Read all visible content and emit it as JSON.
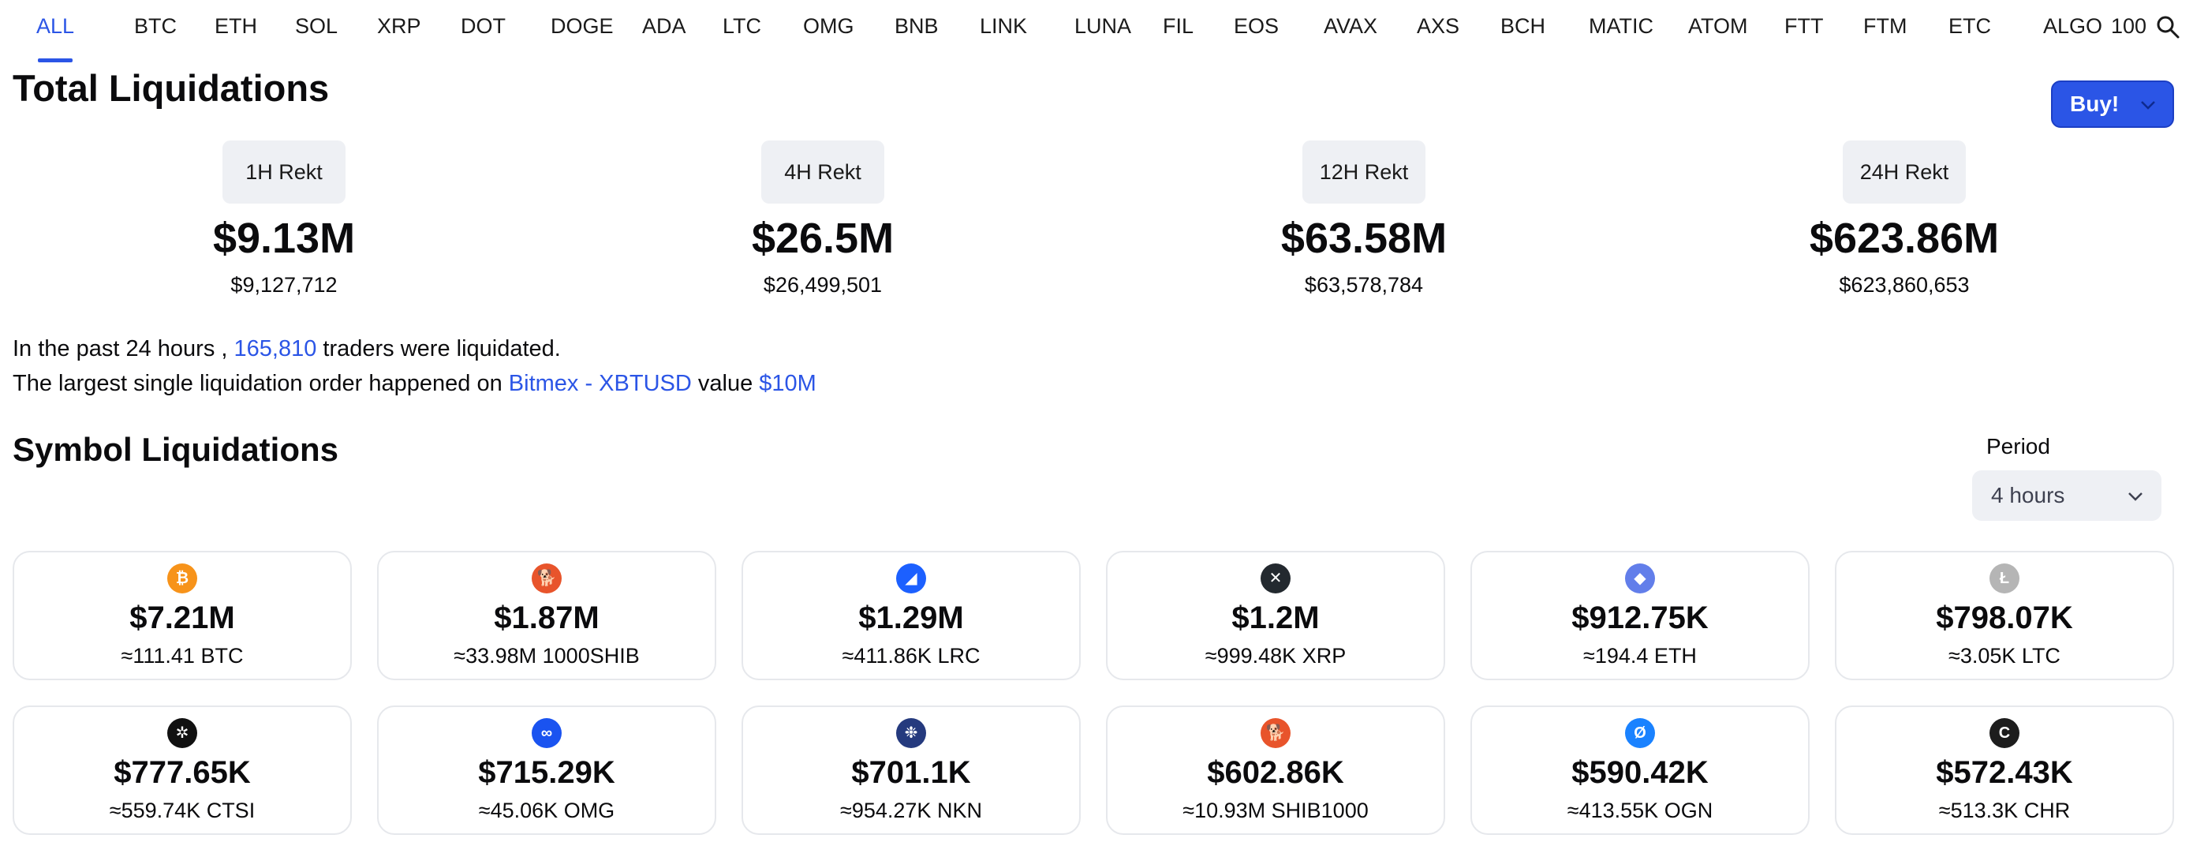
{
  "tabs": [
    "ALL",
    "BTC",
    "ETH",
    "SOL",
    "XRP",
    "DOT",
    "DOGE",
    "ADA",
    "LTC",
    "OMG",
    "BNB",
    "LINK",
    "LUNA",
    "FIL",
    "EOS",
    "AVAX",
    "AXS",
    "BCH",
    "MATIC",
    "ATOM",
    "FTT",
    "FTM",
    "ETC",
    "ALGO",
    "100"
  ],
  "active_tab": "ALL",
  "total": {
    "title": "Total Liquidations",
    "buy_label": "Buy!",
    "rekt": [
      {
        "label": "1H Rekt",
        "big": "$9.13M",
        "small": "$9,127,712"
      },
      {
        "label": "4H Rekt",
        "big": "$26.5M",
        "small": "$26,499,501"
      },
      {
        "label": "12H Rekt",
        "big": "$63.58M",
        "small": "$63,578,784"
      },
      {
        "label": "24H Rekt",
        "big": "$623.86M",
        "small": "$623,860,653"
      }
    ]
  },
  "summary": {
    "line1_prefix": "In the past 24 hours , ",
    "traders": "165,810",
    "line1_suffix": " traders were liquidated.",
    "line2_prefix": "The largest single liquidation order happened on ",
    "exchange": "Bitmex - XBTUSD",
    "line2_mid": " value ",
    "value": "$10M"
  },
  "symbols": {
    "title": "Symbol Liquidations",
    "period_label": "Period",
    "period_value": "4 hours",
    "cards": [
      {
        "icon": "bitcoin-icon",
        "glyph": "₿",
        "color": "#f7931a",
        "amount": "$7.21M",
        "sub": "≈111.41 BTC"
      },
      {
        "icon": "shib-icon",
        "glyph": "🐕",
        "color": "#e8542b",
        "amount": "$1.87M",
        "sub": "≈33.98M 1000SHIB"
      },
      {
        "icon": "loopring-icon",
        "glyph": "◢",
        "color": "#1c60ff",
        "amount": "$1.29M",
        "sub": "≈411.86K LRC"
      },
      {
        "icon": "xrp-icon",
        "glyph": "✕",
        "color": "#23292f",
        "amount": "$1.2M",
        "sub": "≈999.48K XRP"
      },
      {
        "icon": "ethereum-icon",
        "glyph": "◆",
        "color": "#627eea",
        "amount": "$912.75K",
        "sub": "≈194.4 ETH"
      },
      {
        "icon": "litecoin-icon",
        "glyph": "Ł",
        "color": "#b5b5b5",
        "amount": "$798.07K",
        "sub": "≈3.05K LTC"
      },
      {
        "icon": "cartesi-icon",
        "glyph": "✲",
        "color": "#111111",
        "amount": "$777.65K",
        "sub": "≈559.74K CTSI"
      },
      {
        "icon": "omg-icon",
        "glyph": "∞",
        "color": "#1a53f0",
        "amount": "$715.29K",
        "sub": "≈45.06K OMG"
      },
      {
        "icon": "nkn-icon",
        "glyph": "❉",
        "color": "#253a7e",
        "amount": "$701.1K",
        "sub": "≈954.27K NKN"
      },
      {
        "icon": "shib-icon",
        "glyph": "🐕",
        "color": "#e8542b",
        "amount": "$602.86K",
        "sub": "≈10.93M SHIB1000"
      },
      {
        "icon": "origin-icon",
        "glyph": "Ø",
        "color": "#1a82ff",
        "amount": "$590.42K",
        "sub": "≈413.55K OGN"
      },
      {
        "icon": "chromia-icon",
        "glyph": "C",
        "color": "#1d1d1d",
        "amount": "$572.43K",
        "sub": "≈513.3K CHR"
      }
    ]
  },
  "colors": {
    "accent": "#2b55e6",
    "pill_bg": "#eef0f4"
  }
}
